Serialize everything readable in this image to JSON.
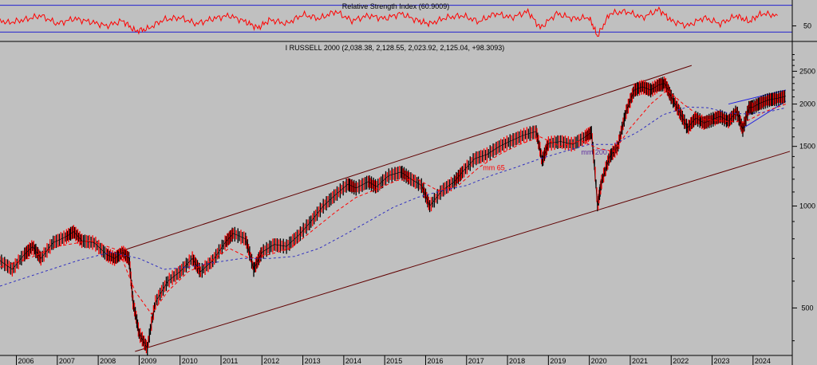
{
  "chart_data": [
    {
      "type": "line",
      "panel": "indicator",
      "title": "Relative Strength Index (60.9009)",
      "y_tick_labels": [
        {
          "value": 50,
          "label": "50"
        }
      ],
      "ylim": [
        38,
        72
      ],
      "bands": [
        {
          "value": 70
        },
        {
          "value": 44
        }
      ],
      "series": [
        {
          "color": "#ff0000",
          "x": [
            2005.0,
            2005.4,
            2005.8,
            2006.2,
            2006.6,
            2007.0,
            2007.4,
            2007.8,
            2008.2,
            2008.6,
            2008.9,
            2009.2,
            2009.6,
            2010.0,
            2010.4,
            2010.8,
            2011.2,
            2011.6,
            2011.9,
            2012.2,
            2012.6,
            2013.0,
            2013.4,
            2013.8,
            2014.2,
            2014.6,
            2015.0,
            2015.4,
            2015.8,
            2016.1,
            2016.5,
            2016.9,
            2017.3,
            2017.7,
            2018.1,
            2018.5,
            2018.8,
            2019.2,
            2019.6,
            2020.0,
            2020.2,
            2020.5,
            2020.9,
            2021.3,
            2021.7,
            2022.0,
            2022.4,
            2022.8,
            2023.2,
            2023.6,
            2023.9,
            2024.2,
            2024.6
          ],
          "values": [
            55,
            58,
            53,
            56,
            60,
            52,
            57,
            54,
            50,
            55,
            45,
            47,
            56,
            58,
            52,
            57,
            60,
            54,
            48,
            56,
            52,
            61,
            57,
            64,
            55,
            60,
            57,
            62,
            55,
            52,
            58,
            60,
            54,
            62,
            58,
            64,
            48,
            62,
            57,
            58,
            40,
            62,
            64,
            58,
            66,
            55,
            50,
            58,
            52,
            60,
            54,
            62,
            60
          ]
        }
      ]
    },
    {
      "type": "line",
      "panel": "price",
      "title": "I RUSSELL 2000 (2,038.38, 2,128.55, 2,023.92, 2,125.04, +98.3093)",
      "y_scale": "log",
      "ylim": [
        370,
        2900
      ],
      "xlim": [
        2005.6,
        2024.9
      ],
      "y_tick_labels": [
        {
          "value": 2500,
          "label": "2500"
        },
        {
          "value": 2000,
          "label": "2000"
        },
        {
          "value": 1500,
          "label": "1500"
        },
        {
          "value": 1000,
          "label": "1000"
        },
        {
          "value": 500,
          "label": "500"
        }
      ],
      "x_tick_labels": [
        {
          "value": 2006,
          "label": "2006"
        },
        {
          "value": 2007,
          "label": "2007"
        },
        {
          "value": 2008,
          "label": "2008"
        },
        {
          "value": 2009,
          "label": "2009"
        },
        {
          "value": 2010,
          "label": "2010"
        },
        {
          "value": 2011,
          "label": "2011"
        },
        {
          "value": 2012,
          "label": "2012"
        },
        {
          "value": 2013,
          "label": "2013"
        },
        {
          "value": 2014,
          "label": "2014"
        },
        {
          "value": 2015,
          "label": "2015"
        },
        {
          "value": 2016,
          "label": "2016"
        },
        {
          "value": 2017,
          "label": "2017"
        },
        {
          "value": 2018,
          "label": "2018"
        },
        {
          "value": 2019,
          "label": "2019"
        },
        {
          "value": 2020,
          "label": "2020"
        },
        {
          "value": 2021,
          "label": "2021"
        },
        {
          "value": 2022,
          "label": "2022"
        },
        {
          "value": 2023,
          "label": "2023"
        },
        {
          "value": 2024,
          "label": "2024"
        }
      ],
      "series": [
        {
          "kind": "price",
          "color": "#000000",
          "x": [
            2005.6,
            2005.9,
            2006.2,
            2006.4,
            2006.6,
            2006.9,
            2007.2,
            2007.4,
            2007.6,
            2007.9,
            2008.2,
            2008.4,
            2008.6,
            2008.75,
            2008.85,
            2009.0,
            2009.2,
            2009.4,
            2009.7,
            2010.0,
            2010.3,
            2010.5,
            2010.8,
            2011.1,
            2011.3,
            2011.6,
            2011.8,
            2012.0,
            2012.3,
            2012.6,
            2012.9,
            2013.2,
            2013.5,
            2013.8,
            2014.1,
            2014.3,
            2014.6,
            2014.8,
            2015.1,
            2015.4,
            2015.6,
            2015.9,
            2016.1,
            2016.4,
            2016.7,
            2016.9,
            2017.2,
            2017.5,
            2017.8,
            2018.1,
            2018.4,
            2018.7,
            2018.85,
            2019.0,
            2019.3,
            2019.6,
            2019.9,
            2020.05,
            2020.2,
            2020.3,
            2020.5,
            2020.7,
            2020.9,
            2021.1,
            2021.3,
            2021.5,
            2021.7,
            2021.85,
            2022.0,
            2022.2,
            2022.4,
            2022.6,
            2022.8,
            2023.0,
            2023.2,
            2023.4,
            2023.6,
            2023.75,
            2023.9,
            2024.0,
            2024.2,
            2024.4,
            2024.6,
            2024.8
          ],
          "values": [
            690,
            650,
            720,
            760,
            700,
            780,
            810,
            840,
            790,
            780,
            720,
            700,
            730,
            700,
            520,
            420,
            380,
            520,
            600,
            640,
            700,
            640,
            690,
            780,
            830,
            800,
            650,
            730,
            770,
            760,
            820,
            900,
            1000,
            1080,
            1160,
            1130,
            1180,
            1140,
            1230,
            1260,
            1210,
            1150,
            1000,
            1110,
            1180,
            1260,
            1380,
            1420,
            1500,
            1560,
            1620,
            1660,
            1360,
            1530,
            1550,
            1520,
            1600,
            1650,
            1000,
            1180,
            1400,
            1500,
            1900,
            2200,
            2250,
            2200,
            2280,
            2300,
            2100,
            1900,
            1700,
            1820,
            1760,
            1800,
            1840,
            1780,
            1900,
            1680,
            1950,
            1960,
            2020,
            2060,
            2080,
            2110
          ]
        },
        {
          "name": "mm 65",
          "color": "#ff0000",
          "dash": "4,3",
          "x": [
            2005.6,
            2006.3,
            2007.0,
            2007.8,
            2008.5,
            2008.9,
            2009.3,
            2009.7,
            2010.2,
            2010.7,
            2011.2,
            2011.7,
            2012.2,
            2012.7,
            2013.2,
            2013.8,
            2014.3,
            2014.8,
            2015.3,
            2015.8,
            2016.3,
            2016.8,
            2017.3,
            2017.8,
            2018.3,
            2018.8,
            2019.3,
            2019.8,
            2020.2,
            2020.6,
            2021.0,
            2021.5,
            2021.9,
            2022.3,
            2022.8,
            2023.3,
            2023.8,
            2024.3,
            2024.8
          ],
          "values": [
            660,
            700,
            760,
            790,
            740,
            560,
            480,
            560,
            640,
            680,
            750,
            700,
            720,
            750,
            840,
            960,
            1060,
            1120,
            1190,
            1200,
            1110,
            1150,
            1300,
            1420,
            1520,
            1600,
            1500,
            1560,
            1480,
            1450,
            1700,
            2000,
            2200,
            2000,
            1800,
            1780,
            1770,
            1900,
            2000
          ]
        },
        {
          "name": "mm 200",
          "color": "#3030c0",
          "dash": "3,3",
          "x": [
            2005.6,
            2006.5,
            2007.5,
            2008.3,
            2009.0,
            2009.6,
            2010.2,
            2010.8,
            2011.5,
            2012.2,
            2012.8,
            2013.4,
            2014.0,
            2014.6,
            2015.2,
            2015.8,
            2016.4,
            2017.0,
            2017.6,
            2018.2,
            2018.8,
            2019.4,
            2020.0,
            2020.6,
            2021.2,
            2021.8,
            2022.4,
            2022.9,
            2023.4,
            2023.9,
            2024.4,
            2024.8
          ],
          "values": [
            580,
            630,
            690,
            730,
            700,
            650,
            660,
            680,
            700,
            700,
            710,
            750,
            820,
            900,
            990,
            1060,
            1110,
            1150,
            1230,
            1300,
            1380,
            1450,
            1520,
            1520,
            1660,
            1860,
            1960,
            1950,
            1880,
            1870,
            1900,
            1950
          ]
        }
      ],
      "trendlines": [
        {
          "color": "#600000",
          "x": [
            2008.4,
            2022.5
          ],
          "values": [
            726,
            2600
          ]
        },
        {
          "color": "#600000",
          "x": [
            2008.9,
            2024.9
          ],
          "values": [
            372,
            1450
          ]
        },
        {
          "color": "#1f1fe0",
          "x": [
            2023.4,
            2024.8
          ],
          "values": [
            2000,
            2200
          ]
        },
        {
          "color": "#1f1fe0",
          "x": [
            2023.7,
            2024.8
          ],
          "values": [
            1680,
            2040
          ]
        }
      ],
      "annotations": [
        {
          "text": "mm 65",
          "x": 2017.4,
          "y": 1275,
          "color": "#ff0000"
        },
        {
          "text": "mm 200",
          "x": 2019.8,
          "y": 1420,
          "color": "#6030a0"
        }
      ]
    }
  ]
}
